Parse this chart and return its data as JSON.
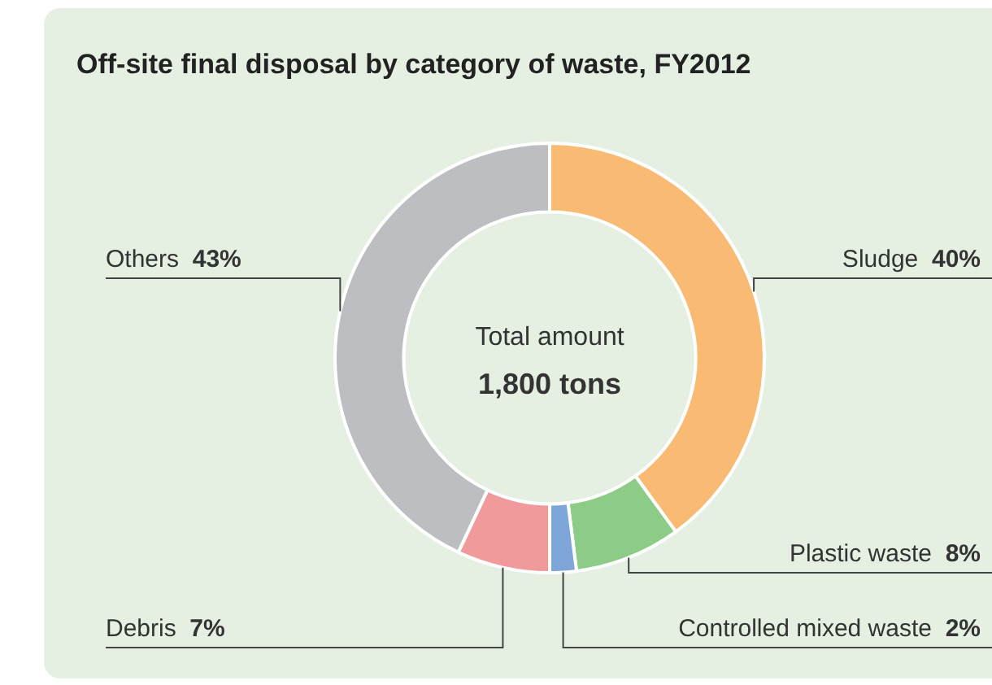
{
  "chart_data": {
    "type": "donut",
    "title": "Off-site final disposal by category of waste, FY2012",
    "categories": [
      "Sludge",
      "Plastic waste",
      "Controlled mixed waste",
      "Debris",
      "Others"
    ],
    "values": [
      40,
      8,
      2,
      7,
      43
    ],
    "value_labels": [
      "40%",
      "8%",
      "2%",
      "7%",
      "43%"
    ],
    "colors": [
      "#f9bb73",
      "#8ccc87",
      "#7fa6d9",
      "#f09a9c",
      "#bdbec1"
    ],
    "annotations": [
      "Total amount",
      "1,800 tons"
    ],
    "legend": false
  }
}
